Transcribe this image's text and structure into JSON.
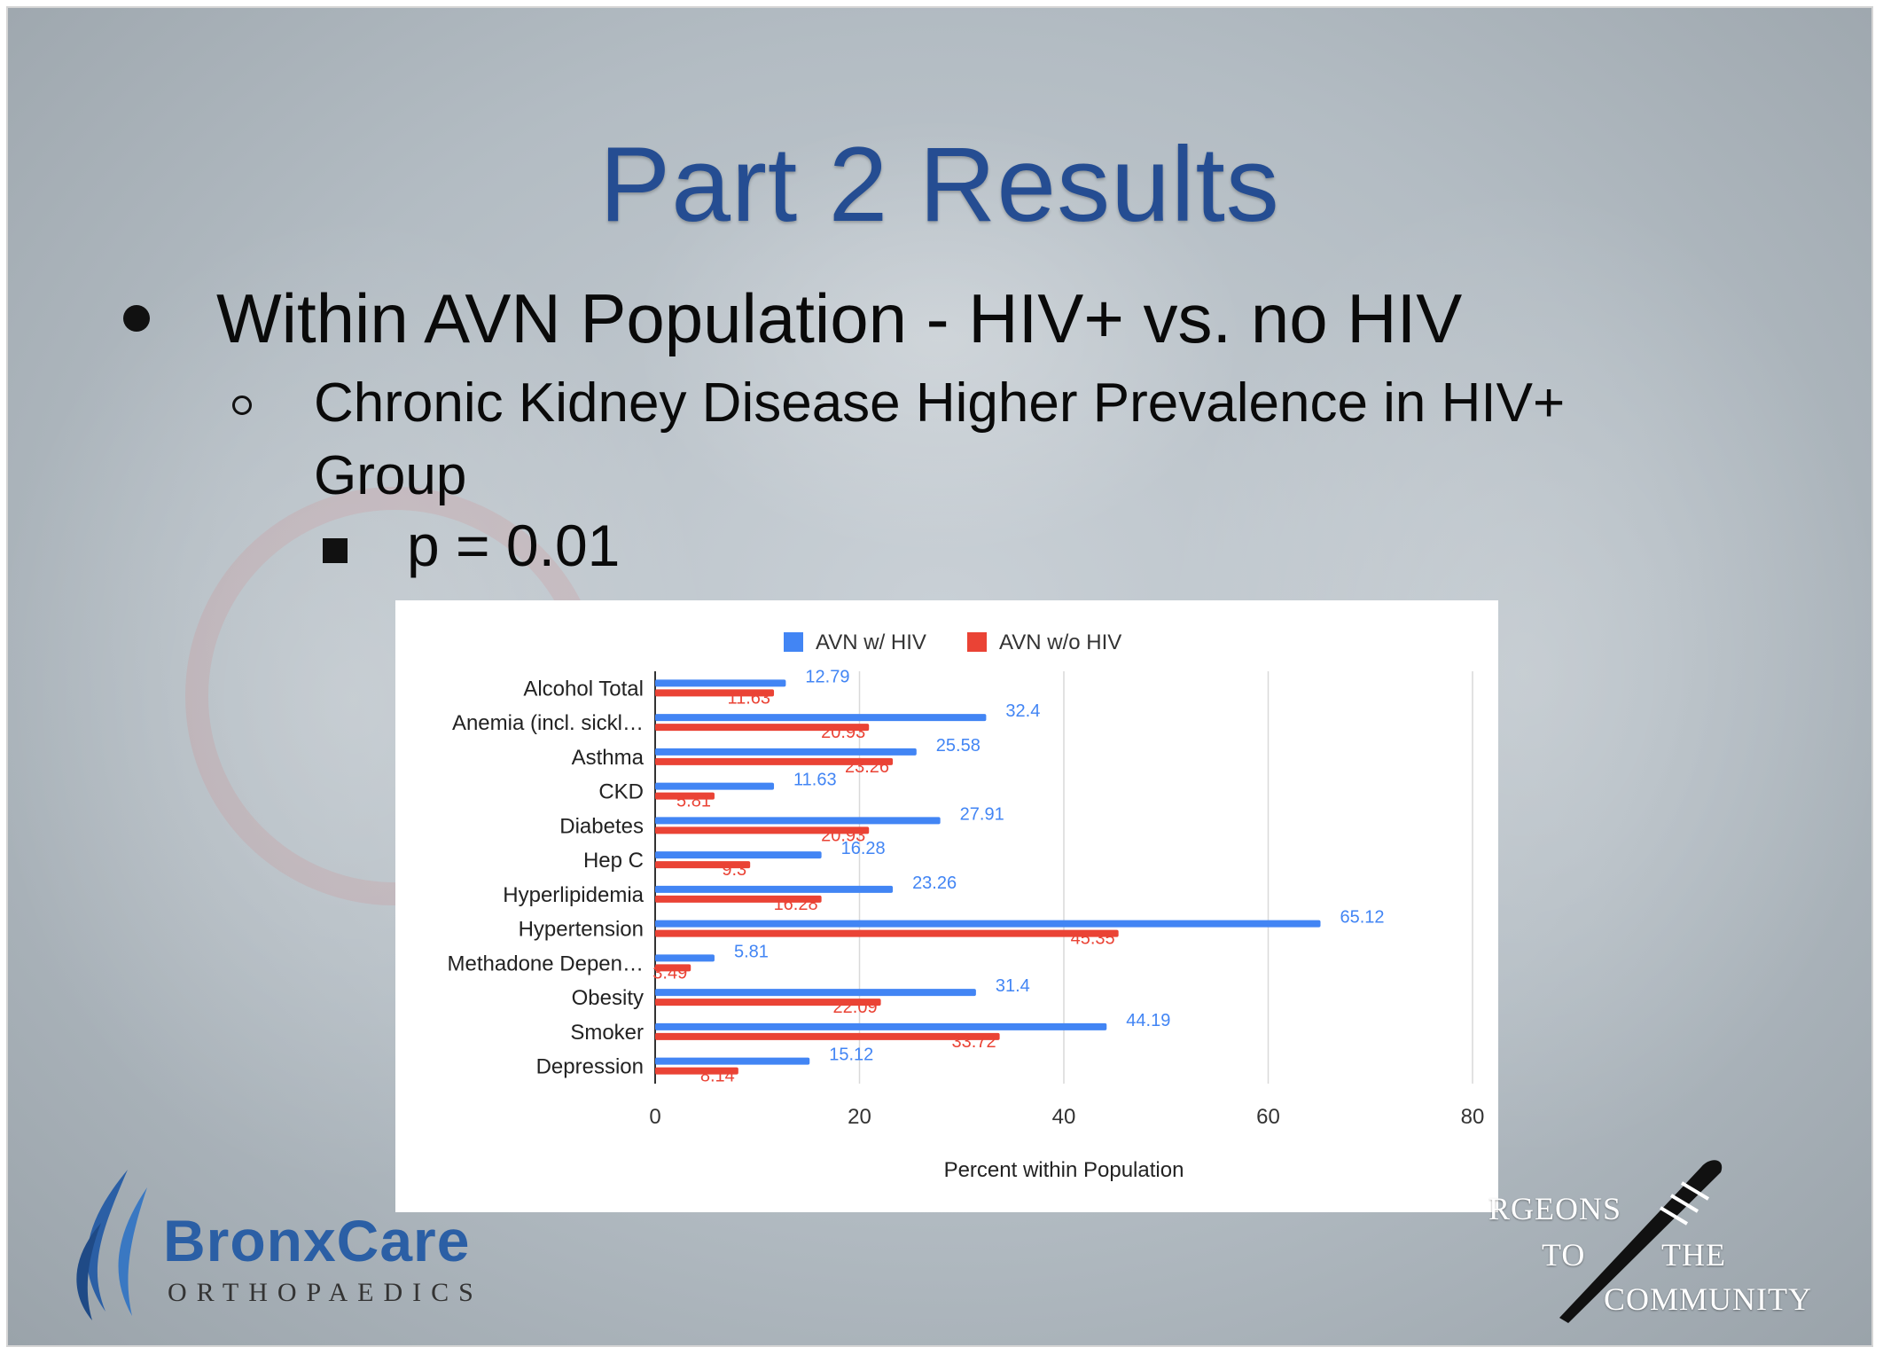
{
  "slide": {
    "title": "Part 2 Results",
    "bullet_1": "Within AVN Population - HIV+ vs. no HIV",
    "bullet_2": "Chronic Kidney Disease Higher Prevalence in HIV+ Group",
    "bullet_3": "p = 0.01"
  },
  "chart_data": {
    "type": "bar",
    "orientation": "horizontal",
    "categories": [
      "Alcohol Total",
      "Anemia (incl. sickl…",
      "Asthma",
      "CKD",
      "Diabetes",
      "Hep C",
      "Hyperlipidemia",
      "Hypertension",
      "Methadone Depen…",
      "Obesity",
      "Smoker",
      "Depression"
    ],
    "series": [
      {
        "name": "AVN w/ HIV",
        "color": "#4285f4",
        "values": [
          12.79,
          32.4,
          25.58,
          11.63,
          27.91,
          16.28,
          23.26,
          65.12,
          5.81,
          31.4,
          44.19,
          15.12
        ]
      },
      {
        "name": "AVN w/o HIV",
        "color": "#ea4335",
        "values": [
          11.63,
          20.93,
          23.26,
          5.81,
          20.93,
          9.3,
          16.28,
          45.35,
          3.49,
          22.09,
          33.72,
          8.14
        ]
      }
    ],
    "xlabel": "Percent within Population",
    "xlim": [
      0,
      80
    ],
    "xticks": [
      0,
      20,
      40,
      60,
      80
    ],
    "grid": true,
    "legend_position": "top",
    "data_labels": true
  },
  "logos": {
    "left_wordmark": "BronxCare",
    "left_subtitle": "ORTHOPAEDICS",
    "right_line_1": "RGEONS",
    "right_line_2_a": "TO",
    "right_line_2_b": "THE",
    "right_line_3": "COMMUNITY"
  }
}
